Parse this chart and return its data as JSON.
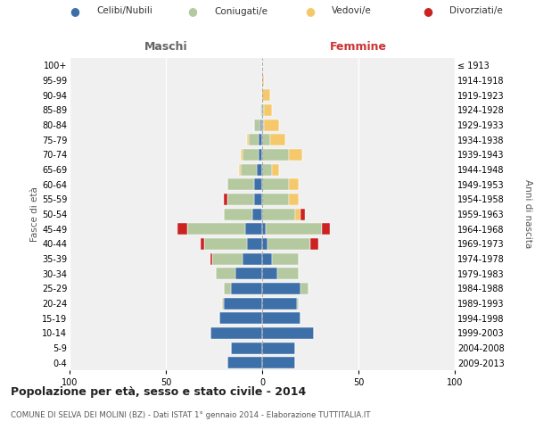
{
  "age_groups": [
    "0-4",
    "5-9",
    "10-14",
    "15-19",
    "20-24",
    "25-29",
    "30-34",
    "35-39",
    "40-44",
    "45-49",
    "50-54",
    "55-59",
    "60-64",
    "65-69",
    "70-74",
    "75-79",
    "80-84",
    "85-89",
    "90-94",
    "95-99",
    "100+"
  ],
  "birth_years": [
    "2009-2013",
    "2004-2008",
    "1999-2003",
    "1994-1998",
    "1989-1993",
    "1984-1988",
    "1979-1983",
    "1974-1978",
    "1969-1973",
    "1964-1968",
    "1959-1963",
    "1954-1958",
    "1949-1953",
    "1944-1948",
    "1939-1943",
    "1934-1938",
    "1929-1933",
    "1924-1928",
    "1919-1923",
    "1914-1918",
    "≤ 1913"
  ],
  "maschi": {
    "celibi": [
      18,
      16,
      27,
      22,
      20,
      16,
      14,
      10,
      8,
      9,
      5,
      4,
      4,
      3,
      2,
      2,
      1,
      0,
      0,
      0,
      0
    ],
    "coniugati": [
      0,
      0,
      0,
      0,
      1,
      4,
      10,
      16,
      22,
      30,
      15,
      14,
      14,
      8,
      8,
      5,
      3,
      1,
      0,
      0,
      0
    ],
    "vedovi": [
      0,
      0,
      0,
      0,
      0,
      0,
      0,
      0,
      0,
      0,
      0,
      0,
      0,
      1,
      1,
      1,
      0,
      0,
      0,
      0,
      0
    ],
    "divorziati": [
      0,
      0,
      0,
      0,
      0,
      0,
      0,
      1,
      2,
      5,
      0,
      2,
      0,
      0,
      0,
      0,
      0,
      0,
      0,
      0,
      0
    ]
  },
  "femmine": {
    "nubili": [
      17,
      17,
      27,
      20,
      18,
      20,
      8,
      5,
      3,
      2,
      0,
      0,
      0,
      0,
      0,
      0,
      0,
      0,
      0,
      0,
      0
    ],
    "coniugate": [
      0,
      0,
      0,
      0,
      1,
      4,
      11,
      14,
      22,
      29,
      17,
      14,
      14,
      5,
      14,
      4,
      1,
      1,
      0,
      0,
      0
    ],
    "vedove": [
      0,
      0,
      0,
      0,
      0,
      0,
      0,
      0,
      0,
      0,
      3,
      5,
      5,
      4,
      7,
      8,
      8,
      4,
      4,
      1,
      0
    ],
    "divorziate": [
      0,
      0,
      0,
      0,
      0,
      0,
      0,
      0,
      4,
      4,
      2,
      0,
      0,
      0,
      0,
      0,
      0,
      0,
      0,
      0,
      0
    ]
  },
  "color_celibi": "#3d6fa8",
  "color_coniugati": "#b5c9a0",
  "color_vedovi": "#f5c96b",
  "color_divorziati": "#cc2222",
  "xlim": 100,
  "title": "Popolazione per età, sesso e stato civile - 2014",
  "subtitle": "COMUNE DI SELVA DEI MOLINI (BZ) - Dati ISTAT 1° gennaio 2014 - Elaborazione TUTTITALIA.IT",
  "ylabel_left": "Fasce di età",
  "ylabel_right": "Anni di nascita",
  "xlabel_left": "Maschi",
  "xlabel_right": "Femmine",
  "legend_labels": [
    "Celibi/Nubili",
    "Coniugati/e",
    "Vedovi/e",
    "Divorziati/e"
  ],
  "bg_color": "#f0f0f0"
}
